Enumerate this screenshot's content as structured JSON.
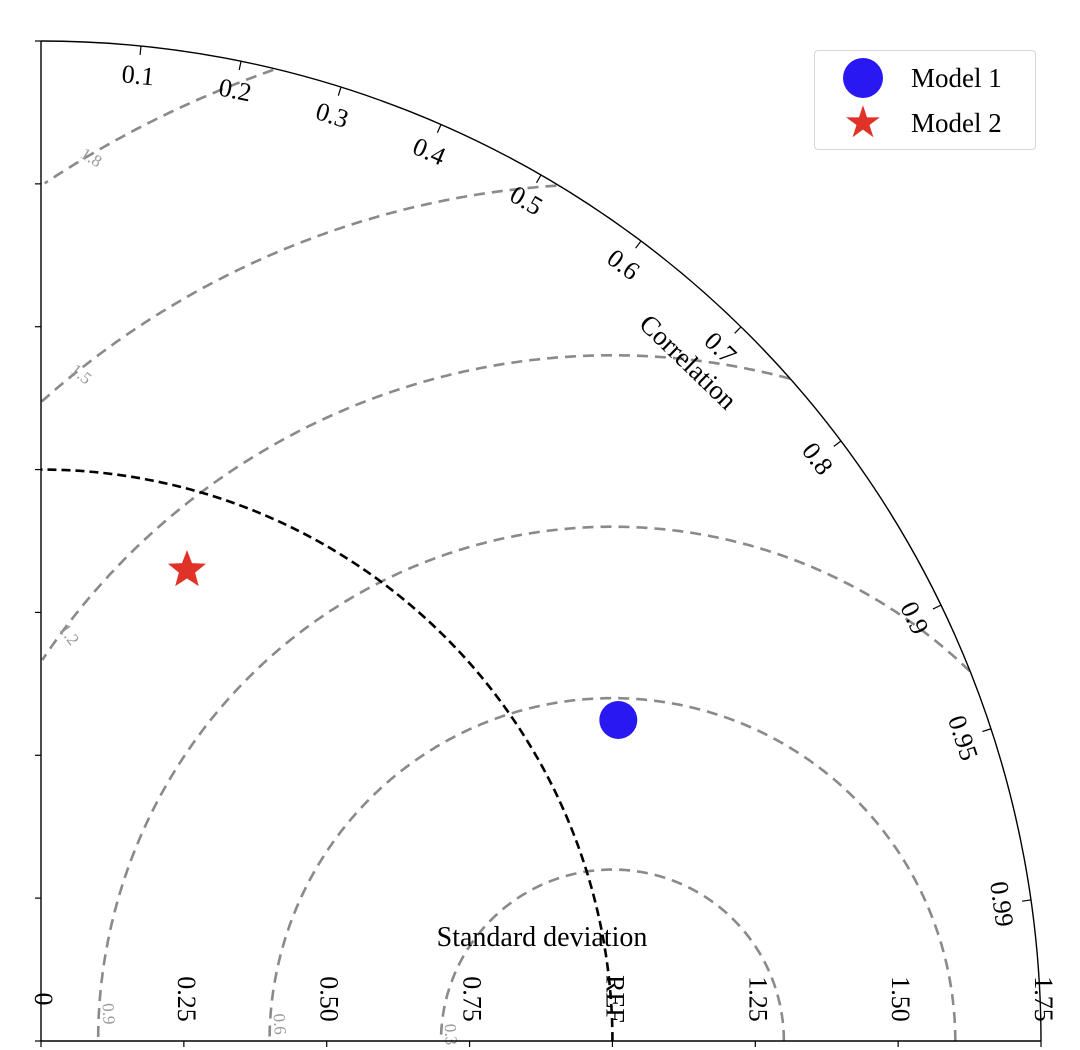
{
  "chart_data": {
    "type": "scatter",
    "subtype": "taylor-diagram",
    "x_axis_label": "Standard deviation",
    "arc_label": "Correlation",
    "std_ticks": [
      "0",
      "0.25",
      "0.50",
      "0.75",
      "REF",
      "1.25",
      "1.50",
      "1.75"
    ],
    "std_tick_values": [
      0,
      0.25,
      0.5,
      0.75,
      1.0,
      1.25,
      1.5,
      1.75
    ],
    "std_max": 1.75,
    "reference_std": 1.0,
    "correlation_ticks": [
      "0.1",
      "0.2",
      "0.3",
      "0.4",
      "0.5",
      "0.6",
      "0.7",
      "0.8",
      "0.9",
      "0.95",
      "0.99"
    ],
    "correlation_tick_values": [
      0.1,
      0.2,
      0.3,
      0.4,
      0.5,
      0.6,
      0.7,
      0.8,
      0.9,
      0.95,
      0.99
    ],
    "rms_contours": [
      0.3,
      0.6,
      0.9,
      1.2,
      1.5,
      1.8
    ],
    "rms_contour_labels": [
      "0.3",
      "0.6",
      "0.9",
      "1.2",
      "1.5",
      "1.8"
    ],
    "series": [
      {
        "name": "Model 1",
        "marker": "circle",
        "color": "#2a18f2",
        "std": 1.156,
        "correlation": 0.874
      },
      {
        "name": "Model 2",
        "marker": "star",
        "color": "#e03226",
        "std": 0.863,
        "correlation": 0.296
      }
    ],
    "legend_position": "top-right"
  }
}
